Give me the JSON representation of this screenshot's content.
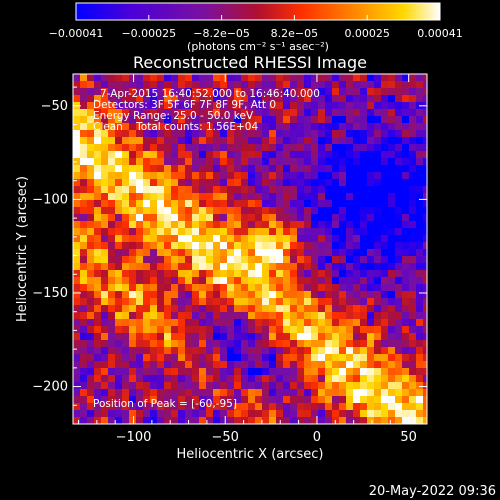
{
  "chart_data": {
    "type": "heatmap",
    "title": "Reconstructed RHESSI Image",
    "xlabel": "Heliocentric X (arcsec)",
    "ylabel": "Heliocentric Y (arcsec)",
    "xlim": [
      -133,
      60
    ],
    "ylim": [
      -220,
      -33
    ],
    "x_ticks": [
      -100,
      -50,
      0,
      50
    ],
    "x_tick_labels": [
      "−100",
      "−50",
      "0",
      "50"
    ],
    "y_ticks": [
      -50,
      -100,
      -150,
      -200
    ],
    "y_tick_labels": [
      "−50",
      "−100",
      "−150",
      "−200"
    ],
    "colorbar": {
      "min": -0.00041,
      "max": 0.00041,
      "tick_labels": [
        "−0.00041",
        "−0.00025",
        "−8.2e−05",
        "8.2e−05",
        "0.00025",
        "0.00041"
      ],
      "unit_label": "(photons cm⁻² s⁻¹ asec⁻²)",
      "colormap": [
        "#0000ff",
        "#4a00d8",
        "#7a10a0",
        "#b01030",
        "#ff3000",
        "#ff9000",
        "#ffd800",
        "#ffffff"
      ]
    },
    "annotations": [
      "7-Apr-2015 16:40:52.000 to 16:46:40.000",
      "Detectors: 3F 5F 6F 7F 8F 9F, Att 0",
      "Energy Range: 25.0 - 50.0 keV",
      "Clean    Total counts: 1.56E+04"
    ],
    "peak_label": "Position of Peak = [-60,-95]",
    "peak": [
      -60,
      -95
    ]
  },
  "footer": {
    "timestamp": "20-May-2022 09:36"
  }
}
